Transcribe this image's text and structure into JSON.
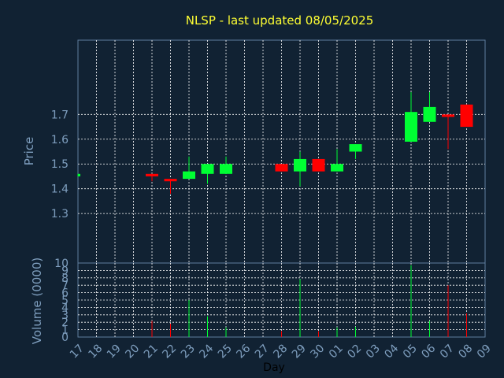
{
  "chart_data": {
    "type": "candlestick",
    "title": "NLSP - last updated 08/05/2025",
    "xlabel": "Day",
    "price_panel": {
      "ylabel": "Price",
      "ylim": [
        1.1,
        2.0
      ],
      "yticks": [
        "1.3",
        "1.4",
        "1.5",
        "1.6",
        "1.7"
      ],
      "grid": true
    },
    "volume_panel": {
      "ylabel": "Volume (0000)",
      "ylim": [
        0,
        10
      ],
      "yticks": [
        "10",
        "9",
        "8",
        "7",
        "6",
        "5",
        "4",
        "3",
        "2",
        "1",
        "0"
      ],
      "grid": true
    },
    "x_ticks": [
      "17",
      "18",
      "19",
      "20",
      "21",
      "22",
      "23",
      "24",
      "25",
      "26",
      "27",
      "28",
      "29",
      "30",
      "01",
      "02",
      "03",
      "04",
      "05",
      "06",
      "07",
      "08",
      "09"
    ],
    "colors": {
      "up": "#00ff33",
      "down": "#ff0000",
      "background": "#112233",
      "grid": "#ffffff",
      "axis_text": "#7f9fbf",
      "title": "#ffff33"
    },
    "candles": [
      {
        "day": "17",
        "open": 1.45,
        "high": 1.46,
        "low": 1.45,
        "close": 1.46,
        "volume": 0
      },
      {
        "day": "21",
        "open": 1.46,
        "high": 1.46,
        "low": 1.43,
        "close": 1.45,
        "volume": 2.2
      },
      {
        "day": "22",
        "open": 1.44,
        "high": 1.44,
        "low": 1.38,
        "close": 1.43,
        "volume": 1.8
      },
      {
        "day": "23",
        "open": 1.44,
        "high": 1.53,
        "low": 1.44,
        "close": 1.47,
        "volume": 5.0
      },
      {
        "day": "24",
        "open": 1.46,
        "high": 1.5,
        "low": 1.42,
        "close": 1.5,
        "volume": 2.8
      },
      {
        "day": "25",
        "open": 1.46,
        "high": 1.53,
        "low": 1.46,
        "close": 1.5,
        "volume": 1.3
      },
      {
        "day": "28",
        "open": 1.5,
        "high": 1.5,
        "low": 1.47,
        "close": 1.47,
        "volume": 0.8
      },
      {
        "day": "29",
        "open": 1.47,
        "high": 1.55,
        "low": 1.41,
        "close": 1.52,
        "volume": 7.8
      },
      {
        "day": "30",
        "open": 1.52,
        "high": 1.52,
        "low": 1.47,
        "close": 1.47,
        "volume": 0.8
      },
      {
        "day": "01",
        "open": 1.47,
        "high": 1.56,
        "low": 1.47,
        "close": 1.5,
        "volume": 1.3
      },
      {
        "day": "02",
        "open": 1.55,
        "high": 1.58,
        "low": 1.52,
        "close": 1.58,
        "volume": 1.4
      },
      {
        "day": "05",
        "open": 1.59,
        "high": 1.79,
        "low": 1.59,
        "close": 1.71,
        "volume": 9.7
      },
      {
        "day": "06",
        "open": 1.67,
        "high": 1.79,
        "low": 1.67,
        "close": 1.73,
        "volume": 2.2
      },
      {
        "day": "07",
        "open": 1.7,
        "high": 1.7,
        "low": 1.56,
        "close": 1.69,
        "volume": 7.0
      },
      {
        "day": "08",
        "open": 1.74,
        "high": 1.74,
        "low": 1.65,
        "close": 1.65,
        "volume": 3.2
      }
    ]
  }
}
